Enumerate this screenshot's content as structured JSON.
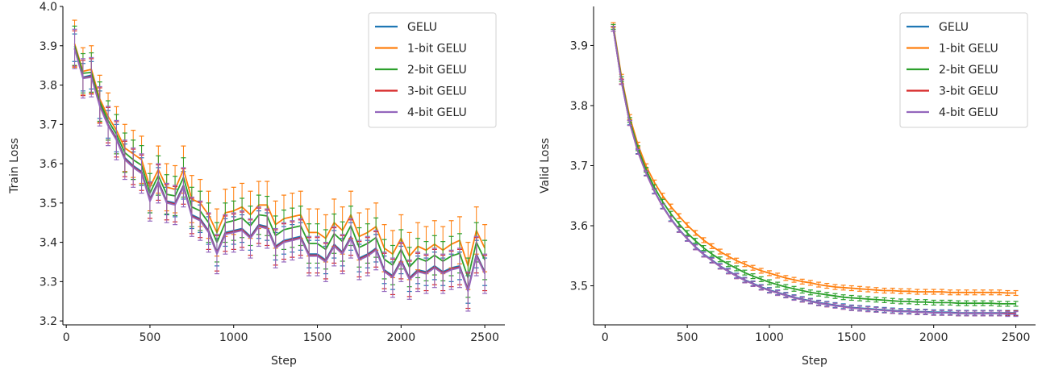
{
  "chart_data": [
    {
      "type": "line",
      "xlabel": "Step",
      "ylabel": "Train Loss",
      "xlim": [
        -20,
        2620
      ],
      "ylim": [
        3.19,
        4.0
      ],
      "xticks": [
        0,
        500,
        1000,
        1500,
        2000,
        2500
      ],
      "yticks": [
        3.2,
        3.3,
        3.4,
        3.5,
        3.6,
        3.7,
        3.8,
        3.9,
        4.0
      ],
      "ytick_labels": [
        "3.2",
        "3.3",
        "3.4",
        "3.5",
        "3.6",
        "3.7",
        "3.8",
        "3.9",
        "4.0"
      ],
      "legend": "top-right",
      "grid": false,
      "error_bars": true,
      "x": [
        50,
        100,
        150,
        200,
        250,
        300,
        350,
        400,
        450,
        500,
        550,
        600,
        650,
        700,
        750,
        800,
        850,
        900,
        950,
        1000,
        1050,
        1100,
        1150,
        1200,
        1250,
        1300,
        1350,
        1400,
        1450,
        1500,
        1550,
        1600,
        1650,
        1700,
        1750,
        1800,
        1850,
        1900,
        1950,
        2000,
        2050,
        2100,
        2150,
        2200,
        2250,
        2300,
        2350,
        2400,
        2450,
        2500
      ],
      "series": [
        {
          "name": "GELU",
          "color": "#1f77b4",
          "err": 0.035,
          "values": [
            3.895,
            3.82,
            3.825,
            3.75,
            3.7,
            3.665,
            3.615,
            3.595,
            3.58,
            3.51,
            3.555,
            3.505,
            3.5,
            3.545,
            3.47,
            3.46,
            3.43,
            3.375,
            3.425,
            3.43,
            3.435,
            3.415,
            3.445,
            3.44,
            3.39,
            3.405,
            3.41,
            3.415,
            3.37,
            3.37,
            3.355,
            3.395,
            3.375,
            3.415,
            3.36,
            3.37,
            3.385,
            3.33,
            3.315,
            3.355,
            3.31,
            3.33,
            3.325,
            3.34,
            3.325,
            3.335,
            3.34,
            3.28,
            3.37,
            3.325
          ]
        },
        {
          "name": "1-bit GELU",
          "color": "#ff7f0e",
          "err": 0.06,
          "values": [
            3.905,
            3.835,
            3.84,
            3.765,
            3.72,
            3.685,
            3.64,
            3.625,
            3.61,
            3.54,
            3.585,
            3.54,
            3.535,
            3.585,
            3.51,
            3.5,
            3.47,
            3.425,
            3.475,
            3.48,
            3.49,
            3.47,
            3.495,
            3.495,
            3.445,
            3.46,
            3.465,
            3.47,
            3.425,
            3.425,
            3.41,
            3.45,
            3.43,
            3.47,
            3.415,
            3.425,
            3.44,
            3.385,
            3.37,
            3.41,
            3.365,
            3.39,
            3.38,
            3.395,
            3.38,
            3.395,
            3.405,
            3.34,
            3.43,
            3.385
          ]
        },
        {
          "name": "2-bit GELU",
          "color": "#2ca02c",
          "err": 0.05,
          "values": [
            3.9,
            3.83,
            3.832,
            3.758,
            3.71,
            3.675,
            3.628,
            3.61,
            3.596,
            3.525,
            3.57,
            3.522,
            3.518,
            3.565,
            3.49,
            3.48,
            3.45,
            3.4,
            3.45,
            3.455,
            3.462,
            3.442,
            3.47,
            3.467,
            3.417,
            3.432,
            3.437,
            3.442,
            3.397,
            3.397,
            3.382,
            3.422,
            3.402,
            3.442,
            3.387,
            3.397,
            3.412,
            3.357,
            3.342,
            3.382,
            3.337,
            3.36,
            3.352,
            3.367,
            3.352,
            3.365,
            3.372,
            3.31,
            3.4,
            3.355
          ]
        },
        {
          "name": "3-bit GELU",
          "color": "#d62728",
          "err": 0.045,
          "values": [
            3.893,
            3.818,
            3.822,
            3.748,
            3.698,
            3.662,
            3.612,
            3.592,
            3.577,
            3.506,
            3.552,
            3.502,
            3.497,
            3.542,
            3.467,
            3.457,
            3.427,
            3.372,
            3.422,
            3.427,
            3.432,
            3.412,
            3.442,
            3.437,
            3.387,
            3.402,
            3.407,
            3.412,
            3.367,
            3.367,
            3.352,
            3.392,
            3.372,
            3.412,
            3.357,
            3.367,
            3.382,
            3.327,
            3.312,
            3.352,
            3.307,
            3.327,
            3.322,
            3.337,
            3.322,
            3.332,
            3.337,
            3.277,
            3.367,
            3.322
          ]
        },
        {
          "name": "4-bit GELU",
          "color": "#9467bd",
          "err": 0.05,
          "values": [
            3.892,
            3.817,
            3.82,
            3.746,
            3.696,
            3.66,
            3.61,
            3.59,
            3.575,
            3.504,
            3.55,
            3.5,
            3.495,
            3.54,
            3.465,
            3.455,
            3.425,
            3.37,
            3.42,
            3.425,
            3.43,
            3.41,
            3.44,
            3.435,
            3.385,
            3.4,
            3.405,
            3.41,
            3.365,
            3.365,
            3.35,
            3.39,
            3.37,
            3.41,
            3.355,
            3.365,
            3.38,
            3.325,
            3.31,
            3.35,
            3.305,
            3.325,
            3.32,
            3.335,
            3.32,
            3.33,
            3.335,
            3.275,
            3.365,
            3.32
          ]
        }
      ]
    },
    {
      "type": "line",
      "xlabel": "Step",
      "ylabel": "Valid Loss",
      "xlim": [
        -70,
        2620
      ],
      "ylim": [
        3.435,
        3.965
      ],
      "xticks": [
        0,
        500,
        1000,
        1500,
        2000,
        2500
      ],
      "yticks": [
        3.5,
        3.6,
        3.7,
        3.8,
        3.9
      ],
      "ytick_labels": [
        "3.5",
        "3.6",
        "3.7",
        "3.8",
        "3.9"
      ],
      "legend": "top-right",
      "grid": false,
      "error_bars": true,
      "x": [
        50,
        100,
        150,
        200,
        250,
        300,
        350,
        400,
        450,
        500,
        550,
        600,
        650,
        700,
        750,
        800,
        850,
        900,
        950,
        1000,
        1050,
        1100,
        1150,
        1200,
        1250,
        1300,
        1350,
        1400,
        1450,
        1500,
        1550,
        1600,
        1650,
        1700,
        1750,
        1800,
        1850,
        1900,
        1950,
        2000,
        2050,
        2100,
        2150,
        2200,
        2250,
        2300,
        2350,
        2400,
        2450,
        2500
      ],
      "series": [
        {
          "name": "GELU",
          "color": "#1f77b4",
          "err": 0.004,
          "values": [
            3.928,
            3.84,
            3.772,
            3.724,
            3.688,
            3.658,
            3.633,
            3.612,
            3.594,
            3.579,
            3.565,
            3.553,
            3.543,
            3.533,
            3.525,
            3.517,
            3.51,
            3.504,
            3.498,
            3.493,
            3.489,
            3.485,
            3.481,
            3.478,
            3.475,
            3.472,
            3.47,
            3.468,
            3.466,
            3.464,
            3.463,
            3.462,
            3.461,
            3.46,
            3.459,
            3.458,
            3.458,
            3.457,
            3.457,
            3.456,
            3.456,
            3.456,
            3.455,
            3.455,
            3.455,
            3.455,
            3.455,
            3.455,
            3.455,
            3.455
          ]
        },
        {
          "name": "1-bit GELU",
          "color": "#ff7f0e",
          "err": 0.004,
          "values": [
            3.934,
            3.848,
            3.781,
            3.735,
            3.699,
            3.672,
            3.65,
            3.632,
            3.616,
            3.601,
            3.588,
            3.576,
            3.566,
            3.557,
            3.549,
            3.542,
            3.536,
            3.53,
            3.525,
            3.521,
            3.517,
            3.513,
            3.51,
            3.507,
            3.505,
            3.502,
            3.5,
            3.498,
            3.497,
            3.496,
            3.495,
            3.494,
            3.493,
            3.492,
            3.492,
            3.491,
            3.491,
            3.49,
            3.49,
            3.49,
            3.49,
            3.489,
            3.489,
            3.489,
            3.489,
            3.489,
            3.489,
            3.489,
            3.488,
            3.488
          ]
        },
        {
          "name": "2-bit GELU",
          "color": "#2ca02c",
          "err": 0.004,
          "values": [
            3.931,
            3.844,
            3.776,
            3.729,
            3.693,
            3.664,
            3.64,
            3.62,
            3.603,
            3.588,
            3.575,
            3.563,
            3.553,
            3.544,
            3.536,
            3.529,
            3.522,
            3.516,
            3.511,
            3.506,
            3.502,
            3.498,
            3.495,
            3.492,
            3.489,
            3.487,
            3.485,
            3.483,
            3.481,
            3.48,
            3.479,
            3.478,
            3.477,
            3.476,
            3.475,
            3.474,
            3.474,
            3.473,
            3.473,
            3.472,
            3.472,
            3.472,
            3.471,
            3.471,
            3.471,
            3.471,
            3.471,
            3.47,
            3.47,
            3.47
          ]
        },
        {
          "name": "3-bit GELU",
          "color": "#d62728",
          "err": 0.004,
          "values": [
            3.928,
            3.84,
            3.771,
            3.723,
            3.687,
            3.657,
            3.632,
            3.611,
            3.593,
            3.578,
            3.564,
            3.552,
            3.542,
            3.532,
            3.524,
            3.516,
            3.509,
            3.503,
            3.497,
            3.492,
            3.488,
            3.484,
            3.48,
            3.477,
            3.474,
            3.471,
            3.469,
            3.467,
            3.465,
            3.463,
            3.462,
            3.461,
            3.46,
            3.459,
            3.458,
            3.457,
            3.457,
            3.456,
            3.456,
            3.455,
            3.455,
            3.455,
            3.454,
            3.454,
            3.454,
            3.454,
            3.454,
            3.454,
            3.454,
            3.454
          ]
        },
        {
          "name": "4-bit GELU",
          "color": "#9467bd",
          "err": 0.004,
          "values": [
            3.928,
            3.839,
            3.771,
            3.723,
            3.687,
            3.657,
            3.632,
            3.611,
            3.593,
            3.578,
            3.564,
            3.552,
            3.542,
            3.532,
            3.524,
            3.516,
            3.509,
            3.503,
            3.497,
            3.492,
            3.488,
            3.484,
            3.48,
            3.477,
            3.474,
            3.471,
            3.469,
            3.467,
            3.465,
            3.463,
            3.462,
            3.461,
            3.46,
            3.459,
            3.458,
            3.457,
            3.457,
            3.456,
            3.456,
            3.455,
            3.455,
            3.455,
            3.454,
            3.454,
            3.454,
            3.454,
            3.454,
            3.454,
            3.453,
            3.453
          ]
        }
      ]
    }
  ]
}
